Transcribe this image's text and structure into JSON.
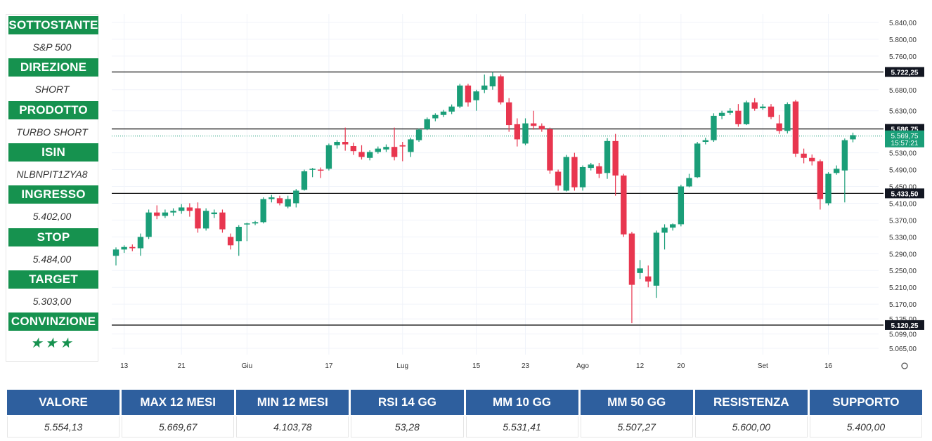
{
  "sidebar": {
    "items": [
      {
        "label": "SOTTOSTANTE",
        "value": "S&P 500"
      },
      {
        "label": "DIREZIONE",
        "value": "SHORT"
      },
      {
        "label": "PRODOTTO",
        "value": "TURBO SHORT"
      },
      {
        "label": "ISIN",
        "value": "NLBNPIT1ZYA8"
      },
      {
        "label": "INGRESSO",
        "value": "5.402,00"
      },
      {
        "label": "STOP",
        "value": "5.484,00"
      },
      {
        "label": "TARGET",
        "value": "5.303,00"
      },
      {
        "label": "CONVINZIONE",
        "value": "★★★"
      }
    ]
  },
  "summary": {
    "headers": [
      "VALORE",
      "MAX 12 MESI",
      "MIN 12 MESI",
      "RSI 14 GG",
      "MM 10 GG",
      "MM 50 GG",
      "RESISTENZA",
      "SUPPORTO"
    ],
    "values": [
      "5.554,13",
      "5.669,67",
      "4.103,78",
      "53,28",
      "5.531,41",
      "5.507,27",
      "5.600,00",
      "5.400,00"
    ]
  },
  "colors": {
    "up": "#1a9e78",
    "down": "#e8364f",
    "accent": "#16924f",
    "table_header": "#2e5f9e"
  },
  "chart_data": {
    "type": "candlestick",
    "ylim": [
      5050,
      5860
    ],
    "yticks": [
      5840,
      5800,
      5760,
      5680,
      5630,
      5530,
      5490,
      5450,
      5410,
      5370,
      5330,
      5290,
      5250,
      5210,
      5170,
      5135,
      5099,
      5065
    ],
    "ytick_labels": [
      "5.840,00",
      "5.800,00",
      "5.760,00",
      "5.680,00",
      "5.630,00",
      "5.530,00",
      "5.490,00",
      "5.450,00",
      "5.410,00",
      "5.370,00",
      "5.330,00",
      "5.290,00",
      "5.250,00",
      "5.210,00",
      "5.170,00",
      "5.135,00",
      "5.099,00",
      "5.065,00"
    ],
    "xticks": [
      {
        "i": 1,
        "label": "13"
      },
      {
        "i": 8,
        "label": "21"
      },
      {
        "i": 16,
        "label": "Giu"
      },
      {
        "i": 26,
        "label": "17"
      },
      {
        "i": 35,
        "label": "Lug"
      },
      {
        "i": 44,
        "label": "15"
      },
      {
        "i": 50,
        "label": "23"
      },
      {
        "i": 57,
        "label": "Ago"
      },
      {
        "i": 64,
        "label": "12"
      },
      {
        "i": 69,
        "label": "20"
      },
      {
        "i": 79,
        "label": "Set"
      },
      {
        "i": 87,
        "label": "16"
      }
    ],
    "hlines": [
      {
        "value": 5722.25,
        "label": "5.722,25"
      },
      {
        "value": 5586.75,
        "label": "5.586,75"
      },
      {
        "value": 5433.5,
        "label": "5.433,50"
      },
      {
        "value": 5120.25,
        "label": "5.120,25"
      }
    ],
    "last_price": {
      "value": 5569.75,
      "label": "5.569,75",
      "time": "15:57:21"
    },
    "candles": [
      [
        5285,
        5300,
        5262,
        5305
      ],
      [
        5300,
        5306,
        5292,
        5310
      ],
      [
        5306,
        5303,
        5296,
        5312
      ],
      [
        5303,
        5330,
        5285,
        5338
      ],
      [
        5330,
        5388,
        5325,
        5395
      ],
      [
        5388,
        5380,
        5372,
        5405
      ],
      [
        5380,
        5388,
        5375,
        5395
      ],
      [
        5388,
        5392,
        5380,
        5398
      ],
      [
        5392,
        5400,
        5385,
        5408
      ],
      [
        5400,
        5392,
        5378,
        5410
      ],
      [
        5398,
        5350,
        5340,
        5412
      ],
      [
        5350,
        5392,
        5345,
        5398
      ],
      [
        5384,
        5388,
        5375,
        5395
      ],
      [
        5388,
        5348,
        5340,
        5395
      ],
      [
        5330,
        5310,
        5300,
        5338
      ],
      [
        5320,
        5354,
        5285,
        5358
      ],
      [
        5360,
        5362,
        5320,
        5364
      ],
      [
        5362,
        5365,
        5358,
        5368
      ],
      [
        5365,
        5420,
        5362,
        5424
      ],
      [
        5420,
        5424,
        5412,
        5430
      ],
      [
        5422,
        5410,
        5405,
        5428
      ],
      [
        5402,
        5420,
        5398,
        5428
      ],
      [
        5410,
        5440,
        5400,
        5444
      ],
      [
        5442,
        5486,
        5440,
        5490
      ],
      [
        5490,
        5492,
        5472,
        5494
      ],
      [
        5490,
        5488,
        5470,
        5495
      ],
      [
        5492,
        5548,
        5488,
        5552
      ],
      [
        5548,
        5556,
        5540,
        5560
      ],
      [
        5556,
        5550,
        5535,
        5590
      ],
      [
        5546,
        5534,
        5525,
        5554
      ],
      [
        5532,
        5520,
        5514,
        5548
      ],
      [
        5518,
        5532,
        5512,
        5536
      ],
      [
        5532,
        5540,
        5528,
        5545
      ],
      [
        5538,
        5544,
        5532,
        5550
      ],
      [
        5544,
        5520,
        5512,
        5590
      ],
      [
        5548,
        5545,
        5510,
        5556
      ],
      [
        5532,
        5562,
        5520,
        5566
      ],
      [
        5560,
        5585,
        5556,
        5588
      ],
      [
        5586,
        5610,
        5584,
        5614
      ],
      [
        5612,
        5620,
        5605,
        5624
      ],
      [
        5620,
        5628,
        5615,
        5632
      ],
      [
        5628,
        5640,
        5622,
        5645
      ],
      [
        5640,
        5690,
        5636,
        5694
      ],
      [
        5690,
        5650,
        5640,
        5694
      ],
      [
        5655,
        5676,
        5630,
        5680
      ],
      [
        5680,
        5690,
        5672,
        5716
      ],
      [
        5688,
        5712,
        5680,
        5722
      ],
      [
        5712,
        5650,
        5645,
        5716
      ],
      [
        5650,
        5596,
        5580,
        5660
      ],
      [
        5598,
        5562,
        5545,
        5612
      ],
      [
        5552,
        5600,
        5548,
        5612
      ],
      [
        5600,
        5594,
        5585,
        5630
      ],
      [
        5594,
        5586,
        5580,
        5600
      ],
      [
        5586,
        5488,
        5480,
        5590
      ],
      [
        5485,
        5452,
        5440,
        5490
      ],
      [
        5440,
        5520,
        5438,
        5525
      ],
      [
        5520,
        5448,
        5440,
        5530
      ],
      [
        5448,
        5496,
        5440,
        5500
      ],
      [
        5494,
        5502,
        5488,
        5506
      ],
      [
        5498,
        5480,
        5470,
        5506
      ],
      [
        5482,
        5558,
        5468,
        5565
      ],
      [
        5558,
        5476,
        5428,
        5575
      ],
      [
        5476,
        5336,
        5330,
        5480
      ],
      [
        5338,
        5216,
        5125,
        5342
      ],
      [
        5244,
        5255,
        5230,
        5275
      ],
      [
        5236,
        5224,
        5210,
        5262
      ],
      [
        5214,
        5340,
        5185,
        5345
      ],
      [
        5340,
        5352,
        5300,
        5360
      ],
      [
        5352,
        5360,
        5345,
        5362
      ],
      [
        5360,
        5450,
        5355,
        5454
      ],
      [
        5450,
        5470,
        5448,
        5480
      ],
      [
        5472,
        5552,
        5470,
        5556
      ],
      [
        5556,
        5560,
        5550,
        5566
      ],
      [
        5560,
        5618,
        5556,
        5624
      ],
      [
        5618,
        5625,
        5610,
        5630
      ],
      [
        5625,
        5630,
        5620,
        5636
      ],
      [
        5630,
        5598,
        5592,
        5646
      ],
      [
        5598,
        5650,
        5596,
        5654
      ],
      [
        5650,
        5635,
        5630,
        5660
      ],
      [
        5636,
        5640,
        5632,
        5646
      ],
      [
        5640,
        5615,
        5610,
        5646
      ],
      [
        5600,
        5582,
        5575,
        5620
      ],
      [
        5582,
        5646,
        5576,
        5650
      ],
      [
        5652,
        5528,
        5520,
        5656
      ],
      [
        5528,
        5518,
        5505,
        5540
      ],
      [
        5518,
        5510,
        5500,
        5526
      ],
      [
        5510,
        5420,
        5395,
        5514
      ],
      [
        5410,
        5480,
        5405,
        5484
      ],
      [
        5482,
        5492,
        5478,
        5500
      ],
      [
        5488,
        5560,
        5412,
        5564
      ],
      [
        5562,
        5572,
        5555,
        5578
      ]
    ]
  }
}
